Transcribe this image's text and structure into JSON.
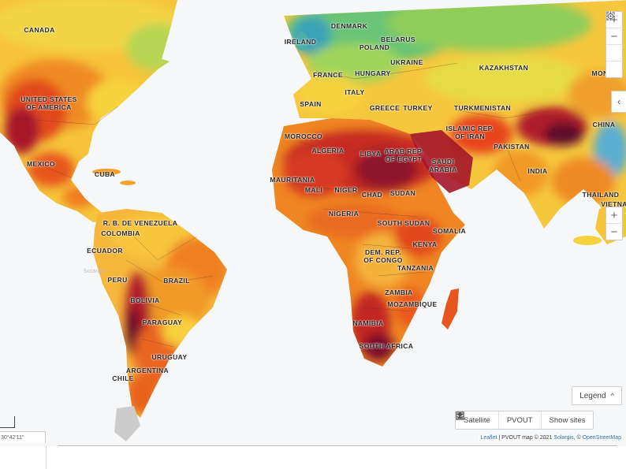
{
  "map": {
    "country_labels": [
      {
        "text": "CANADA"
      },
      {
        "text": "UNITED STATES\nOF AMERICA"
      },
      {
        "text": "MEXICO"
      },
      {
        "text": "CUBA"
      },
      {
        "text": "R. B. DE VENEZUELA"
      },
      {
        "text": "COLOMBIA"
      },
      {
        "text": "ECUADOR"
      },
      {
        "text": "PERU"
      },
      {
        "text": "BRAZIL"
      },
      {
        "text": "BOLIVIA"
      },
      {
        "text": "PARAGUAY"
      },
      {
        "text": "URUGUAY"
      },
      {
        "text": "ARGENTINA"
      },
      {
        "text": "CHILE"
      },
      {
        "text": "IRELAND"
      },
      {
        "text": "DENMARK"
      },
      {
        "text": "BELARUS"
      },
      {
        "text": "POLAND"
      },
      {
        "text": "UKRAINE"
      },
      {
        "text": "FRANCE"
      },
      {
        "text": "HUNGARY"
      },
      {
        "text": "ITALY"
      },
      {
        "text": "SPAIN"
      },
      {
        "text": "GREECE"
      },
      {
        "text": "TURKEY"
      },
      {
        "text": "KAZAKHSTAN"
      },
      {
        "text": "MONGO"
      },
      {
        "text": "TURKMENISTAN"
      },
      {
        "text": "ISLAMIC REP.\nOF IRAN"
      },
      {
        "text": "CHINA"
      },
      {
        "text": "PAKISTAN"
      },
      {
        "text": "INDIA"
      },
      {
        "text": "MOROCCO"
      },
      {
        "text": "ALGERIA"
      },
      {
        "text": "LIBYA"
      },
      {
        "text": "ARAB REP.\nOF EGYPT"
      },
      {
        "text": "SAUDI\nARABIA"
      },
      {
        "text": "MAURITANIA"
      },
      {
        "text": "MALI"
      },
      {
        "text": "NIGER"
      },
      {
        "text": "CHAD"
      },
      {
        "text": "SUDAN"
      },
      {
        "text": "NIGERIA"
      },
      {
        "text": "SOUTH SUDAN"
      },
      {
        "text": "SOMALIA"
      },
      {
        "text": "KENYA"
      },
      {
        "text": "DEM. REP.\nOF CONGO"
      },
      {
        "text": "TANZANIA"
      },
      {
        "text": "ZAMBIA"
      },
      {
        "text": "MOZAMBIQUE"
      },
      {
        "text": "NAMIBIA"
      },
      {
        "text": "SOUTH AFRICA"
      },
      {
        "text": "THAILAND"
      },
      {
        "text": "VIETNA"
      }
    ],
    "watermark": "Solargis"
  },
  "controls": {
    "zoom_in": "+",
    "zoom_out": "−",
    "fullscreen_icon": "fullscreen-icon",
    "locate_icon": "locate-icon",
    "panel_toggle": "‹",
    "zoom_in_2": "+",
    "zoom_out_2": "−"
  },
  "legend": {
    "label": "Legend",
    "chevron": "^"
  },
  "layers": {
    "satellite": "Satellite",
    "pvout": "PVOUT",
    "show_sites": "Show sites"
  },
  "attribution": {
    "leaflet": "Leaflet",
    "middle": " | PVOUT map © 2021 ",
    "solargis": "Solargis",
    "sep": ", © ",
    "osm": "OpenStreetMap"
  },
  "coordinates": "30°42'11\"",
  "colors": {
    "ocean": "#f6f7f8",
    "low": "#2a9fb6",
    "mid_low": "#8ecf57",
    "mid": "#f6e33f",
    "mid_high": "#f59a1c",
    "high": "#e6421e",
    "very_high": "#a5142c",
    "extreme": "#6a0d2e",
    "ice": "#c8c8c8"
  }
}
